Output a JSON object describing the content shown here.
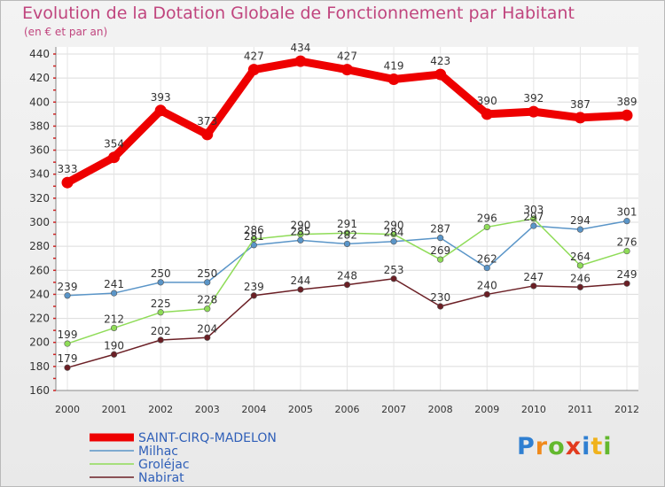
{
  "chart_data": {
    "type": "line",
    "title": "Evolution de la Dotation Globale de Fonctionnement par Habitant",
    "subtitle": "(en € et par an)",
    "x": [
      "2000",
      "2001",
      "2002",
      "2003",
      "2004",
      "2005",
      "2006",
      "2007",
      "2008",
      "2009",
      "2010",
      "2011",
      "2012"
    ],
    "ylim": [
      160,
      440
    ],
    "yticks": [
      160,
      180,
      200,
      220,
      240,
      260,
      280,
      300,
      320,
      340,
      360,
      380,
      400,
      420,
      440
    ],
    "series": [
      {
        "name": "SAINT-CIRQ-MADELON",
        "color": "#ee0000",
        "values": [
          333,
          354,
          393,
          373,
          427,
          434,
          427,
          419,
          423,
          390,
          392,
          387,
          389
        ]
      },
      {
        "name": "Milhac",
        "color": "#5a95c8",
        "values": [
          239,
          241,
          250,
          250,
          281,
          285,
          282,
          284,
          287,
          262,
          297,
          294,
          301
        ]
      },
      {
        "name": "Groléjac",
        "color": "#8fdc58",
        "values": [
          199,
          212,
          225,
          228,
          286,
          290,
          291,
          290,
          269,
          296,
          303,
          264,
          276
        ]
      },
      {
        "name": "Nabirat",
        "color": "#6b1f25",
        "values": [
          179,
          190,
          202,
          204,
          239,
          244,
          248,
          253,
          230,
          240,
          247,
          246,
          249
        ]
      }
    ]
  },
  "logo": {
    "letters": [
      "P",
      "r",
      "o",
      "x",
      "i",
      "t",
      "i"
    ],
    "colors": [
      "#2f7fd1",
      "#f08a1c",
      "#63b82e",
      "#e23b1f",
      "#2f7fd1",
      "#f0b21c",
      "#63b82e"
    ]
  }
}
